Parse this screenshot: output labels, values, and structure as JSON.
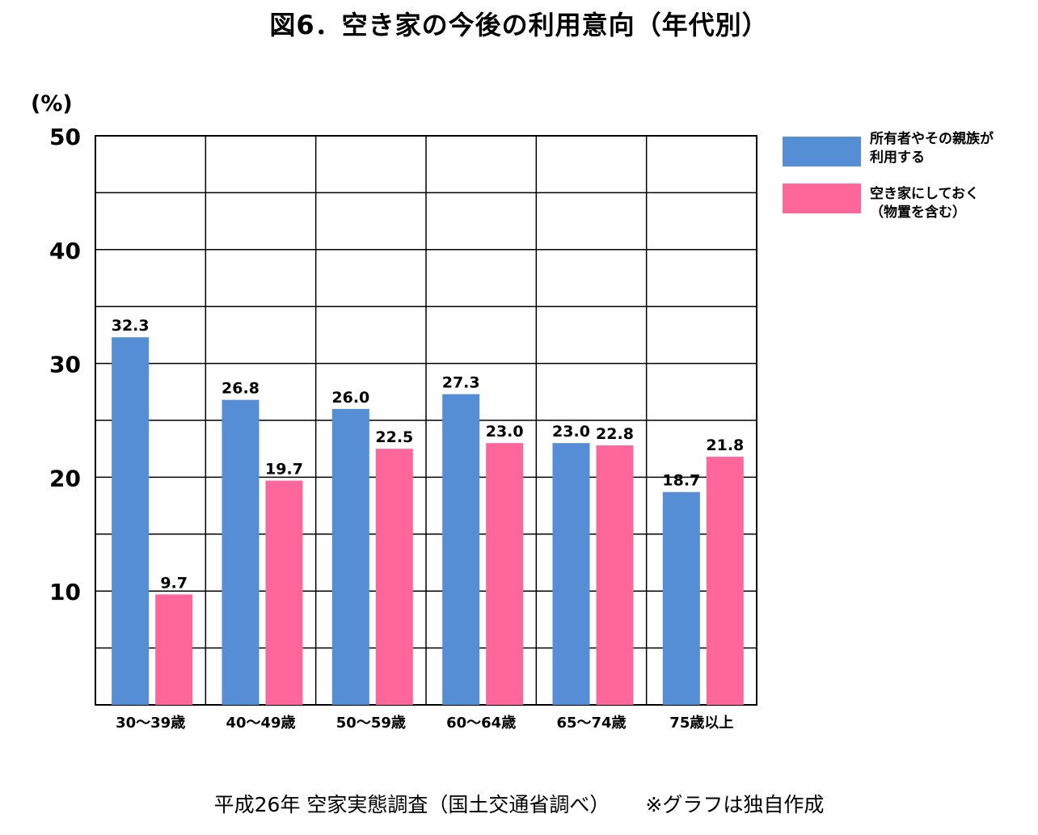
{
  "colors": {
    "series1": "#558ED5",
    "series2": "#FF6699",
    "grid": "#000000",
    "background": "#FFFFFF"
  },
  "chart_data": {
    "type": "bar",
    "title": "図6．空き家の今後の利用意向（年代別）",
    "ylabel": "(%)",
    "xlabel": "",
    "ylim": [
      0,
      50
    ],
    "ytick_labels": [
      "10",
      "20",
      "30",
      "40",
      "50"
    ],
    "grid": true,
    "legend_position": "right",
    "categories": [
      "30～39歳",
      "40～49歳",
      "50～59歳",
      "60～64歳",
      "65～74歳",
      "75歳以上"
    ],
    "series": [
      {
        "name": "所有者やその親族が\n利用する",
        "values": [
          32.3,
          26.8,
          26.0,
          27.3,
          23.0,
          18.7
        ],
        "value_labels": [
          "32.3",
          "26.8",
          "26.0",
          "27.3",
          "23.0",
          "18.7"
        ]
      },
      {
        "name": "空き家にしておく\n（物置を含む）",
        "values": [
          9.7,
          19.7,
          22.5,
          23.0,
          22.8,
          21.8
        ],
        "value_labels": [
          "9.7",
          "19.7",
          "22.5",
          "23.0",
          "22.8",
          "21.8"
        ]
      }
    ]
  },
  "footer": {
    "source": "平成26年 空家実態調査（国土交通省調べ）",
    "note": "※グラフは独自作成"
  }
}
